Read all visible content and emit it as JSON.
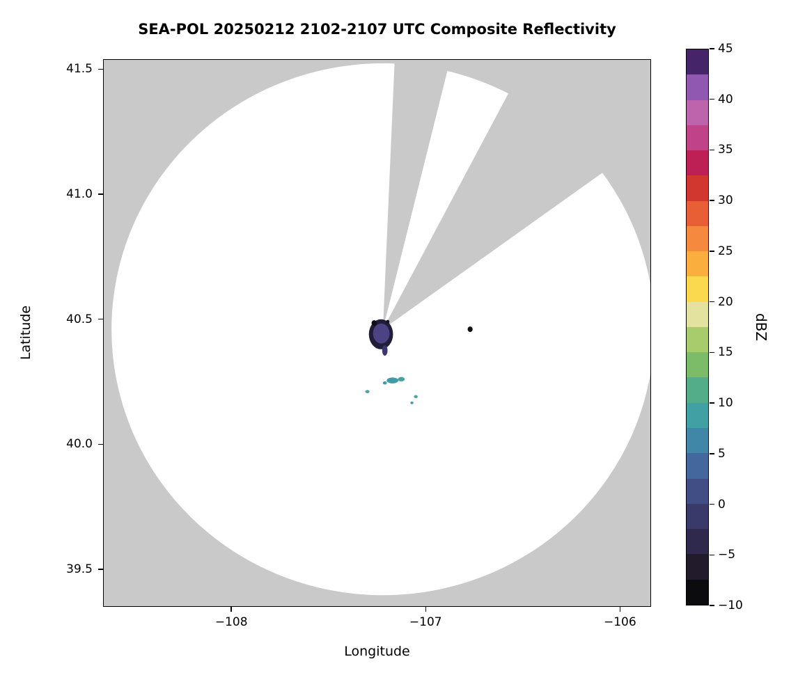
{
  "chart_data": {
    "type": "heatmap",
    "title": "SEA-POL 20250212 2102-2107 UTC Composite Reflectivity",
    "xlabel": "Longitude",
    "ylabel": "Latitude",
    "xlim": [
      -108.66,
      -105.84
    ],
    "ylim": [
      39.35,
      41.54
    ],
    "xticks": [
      -108,
      -107,
      -106
    ],
    "xtick_labels": [
      "−108",
      "−107",
      "−106"
    ],
    "yticks": [
      41.5,
      41.0,
      40.5,
      40.0,
      39.5
    ],
    "ytick_labels": [
      "41.5",
      "41.0",
      "40.5",
      "40.0",
      "39.5"
    ],
    "grid": false,
    "background_outside_coverage": "#c9c9c9",
    "coverage_fill": "#ffffff",
    "radar": {
      "center_lon": -107.22,
      "center_lat": 40.46,
      "radius_lon_deg": 1.4,
      "radius_lat_deg": 1.066
    },
    "missing_sectors_azimuth_deg": [
      [
        2.5,
        14
      ],
      [
        28,
        54.5
      ]
    ],
    "echoes": [
      {
        "lon": -107.23,
        "lat": 40.44,
        "w_deg": 0.125,
        "h_deg": 0.12,
        "dbz": -6,
        "color": "#221d38"
      },
      {
        "lon": -107.228,
        "lat": 40.443,
        "w_deg": 0.085,
        "h_deg": 0.08,
        "dbz": 0,
        "color": "#4b4383"
      },
      {
        "lon": -107.265,
        "lat": 40.485,
        "w_deg": 0.027,
        "h_deg": 0.022,
        "dbz": -9,
        "color": "#0f0e16"
      },
      {
        "lon": -107.195,
        "lat": 40.49,
        "w_deg": 0.018,
        "h_deg": 0.015,
        "dbz": -8,
        "color": "#15122a"
      },
      {
        "lon": -107.21,
        "lat": 40.375,
        "w_deg": 0.028,
        "h_deg": 0.042,
        "dbz": -2,
        "color": "#3d3670"
      },
      {
        "lon": -106.77,
        "lat": 40.46,
        "w_deg": 0.026,
        "h_deg": 0.022,
        "dbz": -10,
        "color": "#121212"
      },
      {
        "lon": -107.17,
        "lat": 40.255,
        "w_deg": 0.06,
        "h_deg": 0.024,
        "dbz": 6,
        "color": "#3e9ba7"
      },
      {
        "lon": -107.125,
        "lat": 40.26,
        "w_deg": 0.035,
        "h_deg": 0.018,
        "dbz": 8,
        "color": "#47a49f"
      },
      {
        "lon": -107.21,
        "lat": 40.245,
        "w_deg": 0.02,
        "h_deg": 0.013,
        "dbz": 6,
        "color": "#3e9ba7"
      },
      {
        "lon": -107.3,
        "lat": 40.21,
        "w_deg": 0.022,
        "h_deg": 0.013,
        "dbz": 7,
        "color": "#49a5a0"
      },
      {
        "lon": -107.05,
        "lat": 40.19,
        "w_deg": 0.02,
        "h_deg": 0.012,
        "dbz": 8,
        "color": "#4ca79b"
      },
      {
        "lon": -107.07,
        "lat": 40.165,
        "w_deg": 0.016,
        "h_deg": 0.01,
        "dbz": 6,
        "color": "#3e9ba7"
      }
    ],
    "colorbar": {
      "label": "dBZ",
      "min": -10,
      "max": 45,
      "ticks": [
        45,
        40,
        35,
        30,
        25,
        20,
        15,
        10,
        5,
        0,
        -5,
        -10
      ],
      "tick_labels": [
        "45",
        "40",
        "35",
        "30",
        "25",
        "20",
        "15",
        "10",
        "5",
        "0",
        "−5",
        "−10"
      ],
      "segment_step_dbz": 2.5,
      "segment_colors_bottom_to_top": [
        "#0c0c0e",
        "#211b2c",
        "#2f2a4d",
        "#393a6a",
        "#414e86",
        "#44689d",
        "#3f86a7",
        "#41a0a4",
        "#53ad89",
        "#7cbc68",
        "#a8cc6c",
        "#e3e39f",
        "#fbd94f",
        "#f9ae3e",
        "#f58a3e",
        "#e85f35",
        "#d2372f",
        "#bc2055",
        "#c04389",
        "#be64ad",
        "#9058b0",
        "#46246a"
      ]
    }
  }
}
